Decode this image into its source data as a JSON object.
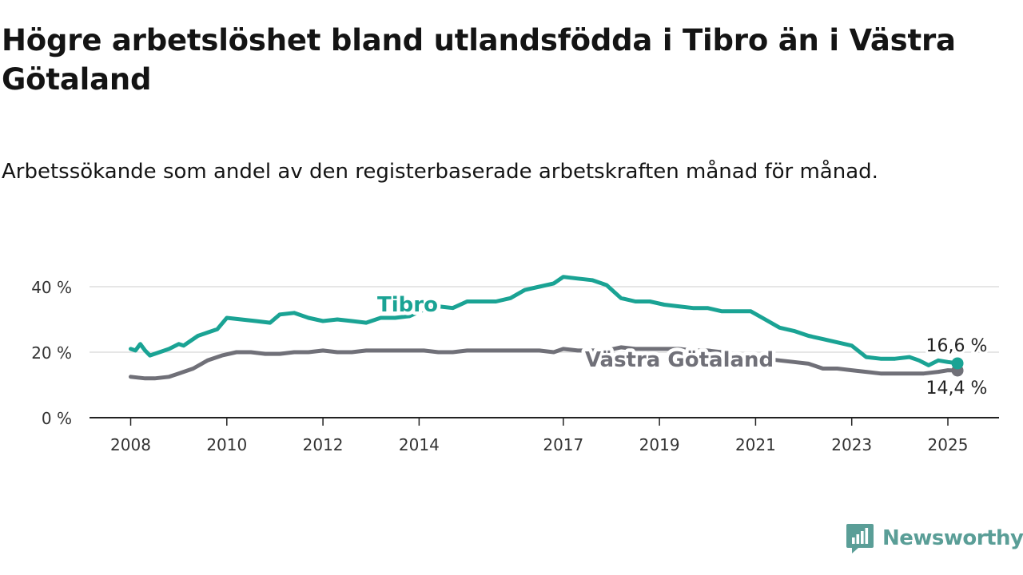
{
  "title": "Högre arbetslöshet bland utlandsfödda i Tibro än i Västra Götaland",
  "subtitle": "Arbetssökande som andel av den registerbaserade arbetskraften månad för månad.",
  "brand": "Newsworthy",
  "colors": {
    "tibro": "#1aa394",
    "vg": "#707078",
    "grid": "#dddddd",
    "axis": "#222222"
  },
  "chart_data": {
    "type": "line",
    "title": "Högre arbetslöshet bland utlandsfödda i Tibro än i Västra Götaland",
    "xlabel": "",
    "ylabel": "",
    "ylim": [
      0,
      45
    ],
    "yticks": [
      0,
      20,
      40
    ],
    "ytick_labels": [
      "0 %",
      "20 %",
      "40 %"
    ],
    "xticks": [
      2008,
      2010,
      2012,
      2014,
      2017,
      2019,
      2021,
      2023,
      2025
    ],
    "xtick_labels": [
      "2008",
      "2010",
      "2012",
      "2014",
      "2017",
      "2019",
      "2021",
      "2023",
      "2025"
    ],
    "grid": true,
    "series": [
      {
        "name": "Tibro",
        "end_label": "16,6 %",
        "x": [
          2008.0,
          2008.1,
          2008.2,
          2008.3,
          2008.4,
          2008.6,
          2008.8,
          2009.0,
          2009.1,
          2009.2,
          2009.4,
          2009.6,
          2009.8,
          2010.0,
          2010.3,
          2010.6,
          2010.9,
          2011.1,
          2011.4,
          2011.7,
          2012.0,
          2012.3,
          2012.6,
          2012.9,
          2013.2,
          2013.5,
          2013.8,
          2014.1,
          2014.4,
          2014.7,
          2015.0,
          2015.3,
          2015.6,
          2015.9,
          2016.2,
          2016.5,
          2016.8,
          2017.0,
          2017.3,
          2017.6,
          2017.9,
          2018.2,
          2018.5,
          2018.8,
          2019.1,
          2019.4,
          2019.7,
          2020.0,
          2020.3,
          2020.6,
          2020.9,
          2021.2,
          2021.5,
          2021.8,
          2022.1,
          2022.4,
          2022.7,
          2023.0,
          2023.3,
          2023.6,
          2023.9,
          2024.2,
          2024.4,
          2024.6,
          2024.8,
          2025.0,
          2025.2
        ],
        "y": [
          21.0,
          20.5,
          22.5,
          20.5,
          19.0,
          20.0,
          21.0,
          22.5,
          22.0,
          23.0,
          25.0,
          26.0,
          27.0,
          30.5,
          30.0,
          29.5,
          29.0,
          31.5,
          32.0,
          30.5,
          29.5,
          30.0,
          29.5,
          29.0,
          30.5,
          30.5,
          31.0,
          33.0,
          34.0,
          33.5,
          35.5,
          35.5,
          35.5,
          36.5,
          39.0,
          40.0,
          41.0,
          43.0,
          42.5,
          42.0,
          40.5,
          36.5,
          35.5,
          35.5,
          34.5,
          34.0,
          33.5,
          33.5,
          32.5,
          32.5,
          32.5,
          30.0,
          27.5,
          26.5,
          25.0,
          24.0,
          23.0,
          22.0,
          18.5,
          18.0,
          18.0,
          18.5,
          17.5,
          16.0,
          17.5,
          17.0,
          16.6
        ]
      },
      {
        "name": "Västra Götaland",
        "end_label": "14,4 %",
        "x": [
          2008.0,
          2008.3,
          2008.5,
          2008.8,
          2009.0,
          2009.3,
          2009.6,
          2009.9,
          2010.2,
          2010.5,
          2010.8,
          2011.1,
          2011.4,
          2011.7,
          2012.0,
          2012.3,
          2012.6,
          2012.9,
          2013.2,
          2013.5,
          2013.8,
          2014.1,
          2014.4,
          2014.7,
          2015.0,
          2015.3,
          2015.6,
          2015.9,
          2016.2,
          2016.5,
          2016.8,
          2017.0,
          2017.3,
          2017.6,
          2017.9,
          2018.2,
          2018.5,
          2018.8,
          2019.1,
          2019.4,
          2019.7,
          2020.0,
          2020.3,
          2020.6,
          2020.9,
          2021.2,
          2021.5,
          2021.8,
          2022.1,
          2022.4,
          2022.7,
          2023.0,
          2023.3,
          2023.6,
          2023.9,
          2024.2,
          2024.5,
          2024.8,
          2025.0,
          2025.2
        ],
        "y": [
          12.5,
          12.0,
          12.0,
          12.5,
          13.5,
          15.0,
          17.5,
          19.0,
          20.0,
          20.0,
          19.5,
          19.5,
          20.0,
          20.0,
          20.5,
          20.0,
          20.0,
          20.5,
          20.5,
          20.5,
          20.5,
          20.5,
          20.0,
          20.0,
          20.5,
          20.5,
          20.5,
          20.5,
          20.5,
          20.5,
          20.0,
          21.0,
          20.5,
          20.5,
          20.5,
          21.5,
          21.0,
          21.0,
          21.0,
          21.0,
          20.5,
          20.5,
          20.0,
          19.0,
          18.5,
          18.0,
          17.5,
          17.0,
          16.5,
          15.0,
          15.0,
          14.5,
          14.0,
          13.5,
          13.5,
          13.5,
          13.5,
          14.0,
          14.5,
          14.4
        ]
      }
    ],
    "legend": "inline labels"
  }
}
